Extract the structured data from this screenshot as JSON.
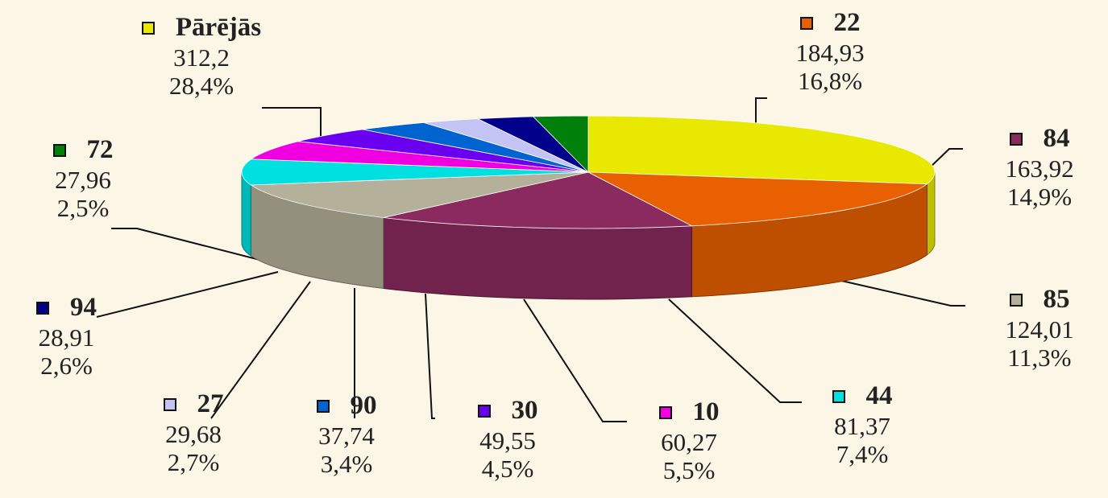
{
  "chart_data": {
    "type": "pie",
    "title": "",
    "style": "3d",
    "slices": [
      {
        "label": "Pārējās",
        "value": 312.2,
        "value_text": "312,2",
        "percent_text": "28,4%",
        "color": "#e8e800"
      },
      {
        "label": "22",
        "value": 184.93,
        "value_text": "184,93",
        "percent_text": "16,8%",
        "color": "#e86000"
      },
      {
        "label": "84",
        "value": 163.92,
        "value_text": "163,92",
        "percent_text": "14,9%",
        "color": "#8a2a5e"
      },
      {
        "label": "85",
        "value": 124.01,
        "value_text": "124,01",
        "percent_text": "11,3%",
        "color": "#b4b09a"
      },
      {
        "label": "44",
        "value": 81.37,
        "value_text": "81,37",
        "percent_text": "7,4%",
        "color": "#00e0e0"
      },
      {
        "label": "10",
        "value": 60.27,
        "value_text": "60,27",
        "percent_text": "5,5%",
        "color": "#f000e0"
      },
      {
        "label": "30",
        "value": 49.55,
        "value_text": "49,55",
        "percent_text": "4,5%",
        "color": "#6a00f0"
      },
      {
        "label": "90",
        "value": 37.74,
        "value_text": "37,74",
        "percent_text": "3,4%",
        "color": "#0064d0"
      },
      {
        "label": "27",
        "value": 29.68,
        "value_text": "29,68",
        "percent_text": "2,7%",
        "color": "#c4c4f4"
      },
      {
        "label": "94",
        "value": 28.91,
        "value_text": "28,91",
        "percent_text": "2,6%",
        "color": "#00008a"
      },
      {
        "label": "72",
        "value": 27.96,
        "value_text": "27,96",
        "percent_text": "2,5%",
        "color": "#00800a"
      }
    ]
  }
}
